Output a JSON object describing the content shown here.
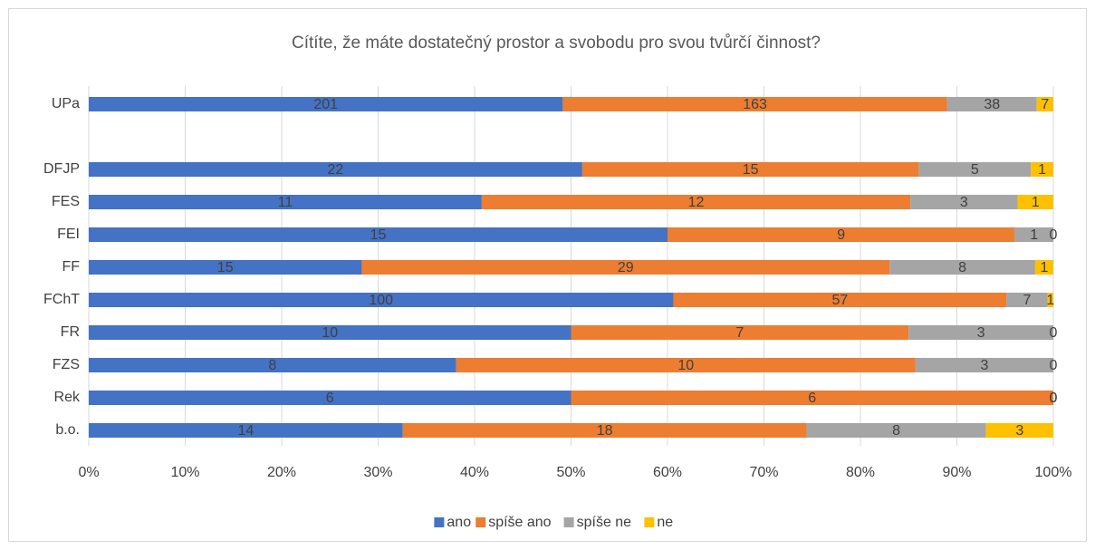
{
  "chart_data": {
    "type": "stacked_bar_100",
    "orientation": "horizontal",
    "title": "Cítíte, že máte dostatečný prostor a svobodu pro svou tvůrčí činnost?",
    "categories": [
      "UPa",
      null,
      "DFJP",
      "FES",
      "FEI",
      "FF",
      "FChT",
      "FR",
      "FZS",
      "Rek",
      "b.o."
    ],
    "series": [
      {
        "name": "ano",
        "color": "#4472c4",
        "values": [
          201,
          null,
          22,
          11,
          15,
          15,
          100,
          10,
          8,
          6,
          14
        ]
      },
      {
        "name": "spíše ano",
        "color": "#ed7d31",
        "values": [
          163,
          null,
          15,
          12,
          9,
          29,
          57,
          7,
          10,
          6,
          18
        ]
      },
      {
        "name": "spíše ne",
        "color": "#a5a5a5",
        "values": [
          38,
          null,
          5,
          3,
          1,
          8,
          7,
          3,
          3,
          0,
          8
        ]
      },
      {
        "name": "ne",
        "color": "#ffc000",
        "values": [
          7,
          null,
          1,
          1,
          0,
          1,
          1,
          0,
          0,
          0,
          3
        ]
      }
    ],
    "xlim": [
      0,
      100
    ],
    "xticks": [
      {
        "value": 0,
        "label": "0%"
      },
      {
        "value": 10,
        "label": "10%"
      },
      {
        "value": 20,
        "label": "20%"
      },
      {
        "value": 30,
        "label": "30%"
      },
      {
        "value": 40,
        "label": "40%"
      },
      {
        "value": 50,
        "label": "50%"
      },
      {
        "value": 60,
        "label": "60%"
      },
      {
        "value": 70,
        "label": "70%"
      },
      {
        "value": 80,
        "label": "80%"
      },
      {
        "value": 90,
        "label": "90%"
      },
      {
        "value": 100,
        "label": "100%"
      }
    ],
    "grid": true,
    "legend": "bottom"
  }
}
